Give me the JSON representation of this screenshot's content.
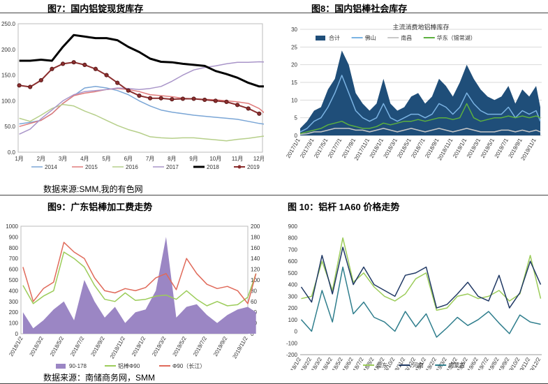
{
  "figures": {
    "fig7_title": "图7：国内铝锭现货库存",
    "fig8_title": "图8：国内铝棒社会库存",
    "fig9_title": "图9：广东铝棒加工费走势",
    "fig10_title": "图 10：铝杆 1A60 价格走势",
    "source_top": "数据来源:SMM,我的有色网",
    "source_bottom": "数据来源：南储商务网，SMM"
  },
  "chart_data": [
    {
      "id": "fig7",
      "type": "line",
      "title": "",
      "ylim": [
        0,
        250
      ],
      "yticks": [
        "0.0",
        "50.0",
        "100.0",
        "150.0",
        "200.0",
        "250.0"
      ],
      "categories": [
        "1月",
        "2月",
        "3月",
        "4月",
        "5月",
        "6月",
        "7月",
        "8月",
        "9月",
        "10月",
        "11月",
        "12月"
      ],
      "grid": false,
      "legend_position": "bottom",
      "series": [
        {
          "name": "2014",
          "color": "#7aa6d6",
          "width": 1.5,
          "x": [
            0,
            0.5,
            1,
            1.5,
            2,
            2.5,
            3,
            3.5,
            4,
            4.5,
            5,
            5.5,
            6,
            6.5,
            7,
            7.5,
            8,
            8.5,
            9,
            9.5,
            10,
            10.5,
            11,
            11.5
          ],
          "values": [
            55,
            58,
            62,
            75,
            95,
            110,
            125,
            128,
            125,
            120,
            112,
            100,
            90,
            82,
            78,
            75,
            72,
            70,
            68,
            66,
            64,
            60,
            56,
            53
          ]
        },
        {
          "name": "2015",
          "color": "#e07b7b",
          "width": 1.5,
          "x": [
            0,
            0.5,
            1,
            1.5,
            2,
            2.5,
            3,
            3.5,
            4,
            4.5,
            5,
            5.5,
            6,
            6.5,
            7,
            7.5,
            8,
            8.5,
            9,
            9.5,
            10,
            10.5,
            11,
            11.5
          ],
          "values": [
            50,
            56,
            62,
            75,
            95,
            110,
            115,
            118,
            122,
            124,
            122,
            118,
            112,
            110,
            108,
            105,
            104,
            103,
            102,
            100,
            98,
            95,
            85,
            67
          ]
        },
        {
          "name": "2016",
          "color": "#b6cf8a",
          "width": 1.5,
          "x": [
            0,
            0.5,
            1,
            1.5,
            2,
            2.5,
            3,
            3.5,
            4,
            4.5,
            5,
            5.5,
            6,
            6.5,
            7,
            7.5,
            8,
            8.5,
            9,
            9.5,
            10,
            10.5,
            11,
            11.5
          ],
          "values": [
            66,
            60,
            72,
            85,
            93,
            90,
            80,
            72,
            62,
            52,
            44,
            38,
            30,
            28,
            27,
            28,
            28,
            26,
            24,
            22,
            25,
            27,
            30,
            33
          ]
        },
        {
          "name": "2017",
          "color": "#a995c9",
          "width": 1.5,
          "x": [
            0,
            0.5,
            1,
            1.5,
            2,
            2.5,
            3,
            3.5,
            4,
            4.5,
            5,
            5.5,
            6,
            6.5,
            7,
            7.5,
            8,
            8.5,
            9,
            9.5,
            10,
            10.5,
            11,
            11.5
          ],
          "values": [
            35,
            45,
            65,
            82,
            100,
            112,
            118,
            120,
            122,
            125,
            124,
            122,
            124,
            128,
            138,
            150,
            160,
            165,
            168,
            172,
            175,
            175,
            176,
            175
          ]
        },
        {
          "name": "2018",
          "color": "#000000",
          "width": 3,
          "x": [
            0,
            0.5,
            1,
            1.5,
            2,
            2.5,
            3,
            3.5,
            4,
            4.5,
            5,
            5.5,
            6,
            6.5,
            7,
            7.5,
            8,
            8.5,
            9,
            9.5,
            10,
            10.5,
            11,
            11.5
          ],
          "values": [
            178,
            178,
            180,
            178,
            205,
            228,
            225,
            222,
            222,
            218,
            205,
            195,
            182,
            176,
            175,
            172,
            170,
            168,
            158,
            152,
            145,
            135,
            128,
            128
          ]
        },
        {
          "name": "2019",
          "color": "#8b2e2e",
          "width": 2,
          "marker": true,
          "x": [
            0,
            0.5,
            1,
            1.5,
            2,
            2.5,
            3,
            3.5,
            4,
            4.5,
            5,
            5.5,
            6,
            6.5,
            7,
            7.5,
            8,
            8.5,
            9,
            9.5,
            10,
            10.5,
            11
          ],
          "values": [
            130,
            127,
            140,
            162,
            172,
            175,
            170,
            162,
            150,
            135,
            120,
            110,
            105,
            105,
            103,
            104,
            104,
            102,
            100,
            98,
            92,
            85,
            75
          ]
        }
      ]
    },
    {
      "id": "fig8",
      "type": "area",
      "title": "主流消费地铝棒库存",
      "ylim": [
        0,
        30
      ],
      "yticks": [
        "0",
        "5",
        "10",
        "15",
        "20",
        "25",
        "30"
      ],
      "categories": [
        "2017/1/1",
        "2017/3/1",
        "2017/5/1",
        "2017/7/1",
        "2017/9/1",
        "2017/11/1",
        "2018/1/1",
        "2018/3/1",
        "2018/5/1",
        "2018/7/1",
        "2018/9/1",
        "2018/11/1",
        "2019/1/1",
        "2019/3/1",
        "2019/5/1",
        "2019/7/1",
        "2019/9/1",
        "2019/11/1"
      ],
      "grid": true,
      "legend_position": "top",
      "series": [
        {
          "name": "合计",
          "color": "#1f4e79",
          "kind": "area",
          "x": [
            0,
            0.5,
            1,
            1.5,
            2,
            2.5,
            3,
            3.5,
            4,
            4.5,
            5,
            5.5,
            6,
            6.5,
            7,
            7.5,
            8,
            8.5,
            9,
            9.5,
            10,
            10.5,
            11,
            11.5,
            12,
            12.5,
            13,
            13.5,
            14,
            14.5,
            15,
            15.5,
            16,
            16.5,
            17,
            17.3
          ],
          "values": [
            2,
            4,
            7,
            8,
            13,
            16,
            24,
            20,
            12,
            9,
            7,
            9,
            16,
            9,
            7,
            8,
            11,
            12,
            9,
            11,
            16,
            14,
            11,
            15,
            20,
            16,
            13,
            11,
            10,
            11,
            14,
            9,
            13,
            11,
            14,
            8
          ]
        },
        {
          "name": "佛山",
          "color": "#7ab3e3",
          "x": [
            0,
            0.5,
            1,
            1.5,
            2,
            2.5,
            3,
            3.5,
            4,
            4.5,
            5,
            5.5,
            6,
            6.5,
            7,
            7.5,
            8,
            8.5,
            9,
            9.5,
            10,
            10.5,
            11,
            11.5,
            12,
            12.5,
            13,
            13.5,
            14,
            14.5,
            15,
            15.5,
            16,
            16.5,
            17,
            17.3
          ],
          "values": [
            1,
            2,
            4,
            5,
            8,
            12,
            17,
            12,
            7,
            5,
            4,
            5,
            9,
            5,
            4,
            5,
            6,
            6,
            5,
            6,
            9,
            8,
            6,
            8,
            12,
            9,
            7,
            6,
            6,
            6,
            8,
            5,
            7,
            6,
            7,
            4
          ]
        },
        {
          "name": "南昌",
          "color": "#c8c8c8",
          "x": [
            0,
            0.5,
            1,
            1.5,
            2,
            2.5,
            3,
            3.5,
            4,
            4.5,
            5,
            5.5,
            6,
            6.5,
            7,
            7.5,
            8,
            8.5,
            9,
            9.5,
            10,
            10.5,
            11,
            11.5,
            12,
            12.5,
            13,
            13.5,
            14,
            14.5,
            15,
            15.5,
            16,
            16.5,
            17,
            17.3
          ],
          "values": [
            0.3,
            0.5,
            1,
            1,
            1.5,
            2,
            2,
            2,
            1.5,
            1.5,
            1,
            1.5,
            2,
            1.5,
            1,
            1.5,
            2,
            1.5,
            1,
            1.5,
            2,
            1.5,
            1,
            1.5,
            2,
            1.5,
            1,
            1,
            1,
            1.5,
            1.5,
            1,
            1.5,
            1,
            1.5,
            1
          ]
        },
        {
          "name": "华东（锡常湖）",
          "color": "#5cb03f",
          "x": [
            0,
            0.5,
            1,
            1.5,
            2,
            2.5,
            3,
            3.5,
            4,
            4.5,
            5,
            5.5,
            6,
            6.5,
            7,
            7.5,
            8,
            8.5,
            9,
            9.5,
            10,
            10.5,
            11,
            11.5,
            12,
            12.5,
            13,
            13.5,
            14,
            14.5,
            15,
            15.5,
            16,
            16.5,
            17,
            17.3
          ],
          "values": [
            0.5,
            1,
            1.5,
            2,
            3,
            3.5,
            4,
            3,
            2.5,
            2,
            2,
            2.5,
            3.5,
            3,
            3.5,
            4,
            4,
            4.5,
            4,
            4.5,
            5,
            5,
            4.5,
            5,
            9,
            5,
            4,
            4.5,
            5,
            5,
            5.5,
            5,
            5.5,
            5,
            5.5,
            5
          ]
        }
      ]
    },
    {
      "id": "fig9",
      "type": "line",
      "title": "",
      "ylim_left": [
        0,
        1000
      ],
      "ylim_right": [
        0,
        200
      ],
      "yticks_left": [
        "0",
        "100",
        "200",
        "300",
        "400",
        "500",
        "600",
        "700",
        "800",
        "900",
        "1000"
      ],
      "yticks_right": [
        "0",
        "20",
        "40",
        "60",
        "80",
        "100",
        "120",
        "140",
        "160",
        "180",
        "200"
      ],
      "categories": [
        "2018/1/2",
        "2018/3/2",
        "2018/5/2",
        "2018/7/2",
        "2018/9/2",
        "2018/11/2",
        "2019/1/2",
        "2019/3/2",
        "2019/5/2",
        "2019/7/2",
        "2019/9/2",
        "2019/11/2"
      ],
      "grid": false,
      "legend_position": "bottom",
      "series": [
        {
          "name": "90-178",
          "color": "#9b86c4",
          "kind": "area",
          "axis": "right",
          "x": [
            0,
            0.5,
            1,
            1.5,
            2,
            2.5,
            3,
            3.5,
            4,
            4.5,
            5,
            5.5,
            6,
            6.5,
            7,
            7.5,
            8,
            8.5,
            9,
            9.5,
            10,
            10.5,
            11,
            11.4
          ],
          "values": [
            40,
            10,
            25,
            45,
            60,
            25,
            100,
            60,
            30,
            50,
            20,
            40,
            45,
            80,
            180,
            30,
            50,
            55,
            35,
            20,
            35,
            45,
            50,
            40
          ]
        },
        {
          "name": "铝棒Φ90",
          "color": "#9ccc5a",
          "axis": "left",
          "x": [
            0,
            0.5,
            1,
            1.5,
            2,
            2.5,
            3,
            3.5,
            4,
            4.5,
            5,
            5.5,
            6,
            6.5,
            7,
            7.5,
            8,
            8.5,
            9,
            9.5,
            10,
            10.5,
            11,
            11.4
          ],
          "values": [
            450,
            280,
            350,
            400,
            760,
            700,
            620,
            450,
            320,
            300,
            380,
            310,
            320,
            350,
            360,
            320,
            400,
            320,
            260,
            300,
            260,
            270,
            340,
            560
          ]
        },
        {
          "name": "Φ90（长江）",
          "color": "#e06a5a",
          "axis": "left",
          "x": [
            0,
            0.5,
            1,
            1.5,
            2,
            2.5,
            3,
            3.5,
            4,
            4.5,
            5,
            5.5,
            6,
            6.5,
            7,
            7.5,
            8,
            8.5,
            9,
            9.5,
            10,
            10.5,
            11,
            11.4
          ],
          "values": [
            620,
            300,
            420,
            480,
            850,
            760,
            700,
            520,
            400,
            380,
            420,
            400,
            430,
            520,
            560,
            410,
            700,
            560,
            460,
            420,
            440,
            400,
            280,
            560
          ]
        }
      ]
    },
    {
      "id": "fig10",
      "type": "line",
      "title": "",
      "ylim": [
        -200,
        900
      ],
      "yticks": [
        "-200",
        "-100",
        "0",
        "100",
        "200",
        "300",
        "400",
        "500",
        "600",
        "700",
        "800",
        "900"
      ],
      "categories": [
        "2018/1/2",
        "2018/2/2",
        "2018/3/2",
        "2018/4/2",
        "2018/5/2",
        "2018/6/2",
        "2018/7/2",
        "2018/8/2",
        "2018/9/2",
        "2018/10/2",
        "2018/11/2",
        "2018/12/2",
        "2019/1/2",
        "2019/2/2",
        "2019/3/2",
        "2019/4/2",
        "2019/5/2",
        "2019/6/2",
        "2019/7/2",
        "2019/8/2",
        "2019/9/2",
        "2019/10/2",
        "2019/11/2",
        "2019/12/2"
      ],
      "grid": false,
      "legend_position": "bottom",
      "series": [
        {
          "name": "山东",
          "color": "#9ccc5a",
          "x": [
            0,
            1,
            2,
            3,
            4,
            5,
            6,
            7,
            8,
            9,
            10,
            11,
            12,
            13,
            14,
            15,
            16,
            17,
            18,
            19,
            20,
            21,
            22,
            23
          ],
          "values": [
            280,
            300,
            600,
            350,
            800,
            420,
            500,
            380,
            300,
            260,
            320,
            450,
            500,
            180,
            200,
            300,
            320,
            280,
            300,
            350,
            260,
            320,
            650,
            280
          ]
        },
        {
          "name": "河南",
          "color": "#1f3864",
          "x": [
            0,
            1,
            2,
            3,
            4,
            5,
            6,
            7,
            8,
            9,
            10,
            11,
            12,
            13,
            14,
            15,
            16,
            17,
            18,
            19,
            20,
            21,
            22,
            23
          ],
          "values": [
            380,
            250,
            650,
            320,
            720,
            400,
            550,
            400,
            350,
            300,
            480,
            500,
            550,
            200,
            230,
            320,
            420,
            300,
            260,
            480,
            200,
            330,
            600,
            400
          ]
        },
        {
          "name": "内蒙古",
          "color": "#2e7d8c",
          "x": [
            0,
            1,
            2,
            3,
            4,
            5,
            6,
            7,
            8,
            9,
            10,
            11,
            12,
            13,
            14,
            15,
            16,
            17,
            18,
            19,
            20,
            21,
            22,
            23
          ],
          "values": [
            100,
            0,
            350,
            80,
            550,
            150,
            250,
            120,
            80,
            0,
            170,
            40,
            150,
            -50,
            30,
            120,
            50,
            100,
            170,
            70,
            -20,
            140,
            80,
            60
          ]
        }
      ]
    }
  ]
}
